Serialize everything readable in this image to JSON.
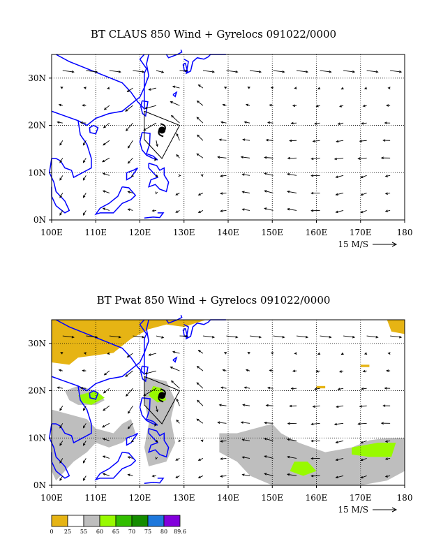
{
  "charts": [
    {
      "title": "BT CLAUS 850 Wind + Gyrelocs 091022/0000",
      "type": "vector",
      "shading": false
    },
    {
      "title": "BT Pwat 850 Wind + Gyrelocs 091022/0000",
      "type": "vector",
      "shading": true
    }
  ],
  "chart_data": [
    {
      "type": "vector",
      "title": "BT CLAUS 850 Wind + Gyrelocs 091022/0000",
      "xlim": [
        100,
        180
      ],
      "ylim": [
        0,
        35
      ],
      "x_ticks": [
        "100E",
        "110E",
        "120E",
        "130E",
        "140E",
        "150E",
        "160E",
        "170E",
        "180"
      ],
      "y_ticks": [
        "0N",
        "10N",
        "20N",
        "30N"
      ],
      "x_tick_values": [
        100,
        110,
        120,
        130,
        140,
        150,
        160,
        170,
        180
      ],
      "y_tick_values": [
        0,
        10,
        20,
        30
      ],
      "grid": true,
      "reference_vector": "15 M/S",
      "gyre_center": {
        "lon": 125,
        "lat": 19
      },
      "gyre_outline": [
        [
          121,
          23
        ],
        [
          129,
          20
        ],
        [
          125,
          13
        ],
        [
          121,
          17
        ]
      ],
      "coastline_color": "#0000ff"
    },
    {
      "type": "vector",
      "title": "BT Pwat 850 Wind + Gyrelocs 091022/0000",
      "xlim": [
        100,
        180
      ],
      "ylim": [
        0,
        35
      ],
      "x_ticks": [
        "100E",
        "110E",
        "120E",
        "130E",
        "140E",
        "150E",
        "160E",
        "170E",
        "180"
      ],
      "y_ticks": [
        "0N",
        "10N",
        "20N",
        "30N"
      ],
      "x_tick_values": [
        100,
        110,
        120,
        130,
        140,
        150,
        160,
        170,
        180
      ],
      "y_tick_values": [
        0,
        10,
        20,
        30
      ],
      "grid": true,
      "reference_vector": "15 M/S",
      "gyre_center": {
        "lon": 125,
        "lat": 19
      },
      "gyre_outline": [
        [
          121,
          23
        ],
        [
          129,
          20
        ],
        [
          125,
          13
        ],
        [
          121,
          17
        ]
      ],
      "coastline_color": "#0000ff",
      "colorbar": {
        "labels": [
          "0",
          "25",
          "55",
          "60",
          "65",
          "70",
          "75",
          "80",
          "89.6"
        ],
        "colors": [
          "#e6b414",
          "#ffffff",
          "#bebebe",
          "#98fa00",
          "#32be00",
          "#148c00",
          "#1e78dc",
          "#8200dc"
        ]
      }
    }
  ]
}
